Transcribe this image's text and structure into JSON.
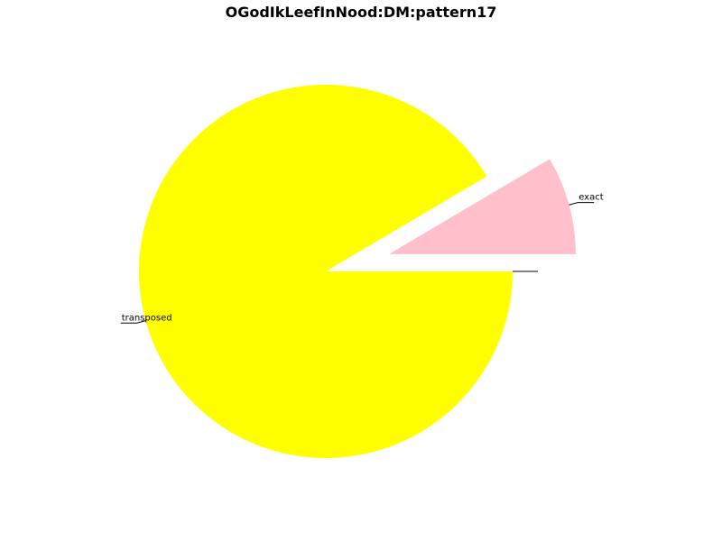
{
  "chart_data": {
    "type": "pie",
    "title": "OGodIkLeefInNood:DM:pattern17",
    "slices": [
      {
        "label": "transposed",
        "value": 91.5,
        "color": "#ffff00",
        "explode": 0
      },
      {
        "label": "exact",
        "value": 8.5,
        "color": "#ffc0cb",
        "explode": 0.35
      },
      {
        "label": "",
        "value": 0,
        "color": "#808080",
        "explode": 0
      },
      {
        "label": "",
        "value": 0,
        "color": "#808080",
        "explode": 0
      }
    ],
    "start_angle_deg": 0,
    "direction": "clockwise"
  }
}
